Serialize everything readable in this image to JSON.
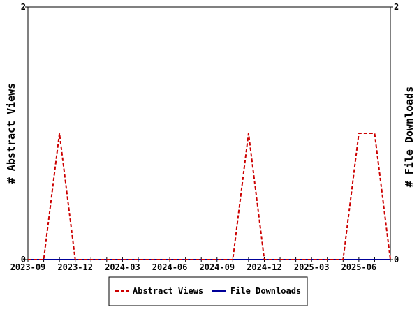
{
  "chart_data": {
    "type": "line",
    "y_left_label": "# Abstract Views",
    "y_right_label": "# File Downloads",
    "y_left_range": [
      0,
      2
    ],
    "y_right_range": [
      0,
      2
    ],
    "y_left_ticks": [
      "0",
      "2"
    ],
    "y_right_ticks": [
      "0",
      "2"
    ],
    "x_range": [
      "2023-09",
      "2025-08"
    ],
    "x_tick_labels": [
      "2023-09",
      "2023-12",
      "2024-03",
      "2024-06",
      "2024-09",
      "2024-12",
      "2025-03",
      "2025-06"
    ],
    "x_months": [
      "2023-09",
      "2023-10",
      "2023-11",
      "2023-12",
      "2024-01",
      "2024-02",
      "2024-03",
      "2024-04",
      "2024-05",
      "2024-06",
      "2024-07",
      "2024-08",
      "2024-09",
      "2024-10",
      "2024-11",
      "2024-12",
      "2025-01",
      "2025-02",
      "2025-03",
      "2025-04",
      "2025-05",
      "2025-06",
      "2025-07",
      "2025-08"
    ],
    "series": [
      {
        "name": "Abstract Views",
        "color": "#cc0000",
        "style": "dashed",
        "axis": "left",
        "values": [
          0,
          0,
          1,
          0,
          0,
          0,
          0,
          0,
          0,
          0,
          0,
          0,
          0,
          0,
          1,
          0,
          0,
          0,
          0,
          0,
          0,
          1,
          1,
          0
        ]
      },
      {
        "name": "File Downloads",
        "color": "#000099",
        "style": "solid",
        "axis": "right",
        "values": [
          0,
          0,
          0,
          0,
          0,
          0,
          0,
          0,
          0,
          0,
          0,
          0,
          0,
          0,
          0,
          0,
          0,
          0,
          0,
          0,
          0,
          0,
          0,
          0
        ]
      }
    ],
    "legend_position": "bottom-center",
    "grid": false
  }
}
